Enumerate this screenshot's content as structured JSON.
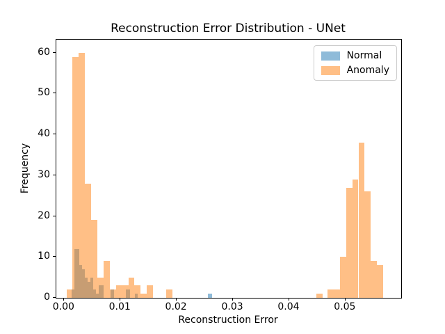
{
  "figure": {
    "title": "Reconstruction Error Distribution - UNet",
    "xlabel": "Reconstruction Error",
    "ylabel": "Frequency"
  },
  "chart_data": {
    "type": "bar",
    "subtype": "histogram-overlaid",
    "title": "Reconstruction Error Distribution - UNet",
    "xlabel": "Reconstruction Error",
    "ylabel": "Frequency",
    "xlim": [
      -0.0014,
      0.0599
    ],
    "ylim": [
      0,
      63.2
    ],
    "x_ticks": [
      0.0,
      0.01,
      0.02,
      0.03,
      0.04,
      0.05
    ],
    "x_tick_labels": [
      "0.00",
      "0.01",
      "0.02",
      "0.03",
      "0.04",
      "0.05"
    ],
    "y_ticks": [
      0,
      10,
      20,
      30,
      40,
      50,
      60
    ],
    "y_tick_labels": [
      "0",
      "10",
      "20",
      "30",
      "40",
      "50",
      "60"
    ],
    "grid": false,
    "legend_position": "upper-right",
    "series": [
      {
        "name": "Normal",
        "color": "#1f77b4",
        "alpha": 0.5,
        "bars": [
          {
            "x": 0.0013,
            "w": 0.0005,
            "c": 2
          },
          {
            "x": 0.0018,
            "w": 0.0009,
            "c": 12
          },
          {
            "x": 0.0027,
            "w": 0.0005,
            "c": 8
          },
          {
            "x": 0.0032,
            "w": 0.0005,
            "c": 7
          },
          {
            "x": 0.0037,
            "w": 0.0005,
            "c": 5
          },
          {
            "x": 0.0042,
            "w": 0.0005,
            "c": 4
          },
          {
            "x": 0.0047,
            "w": 0.0005,
            "c": 5
          },
          {
            "x": 0.0052,
            "w": 0.0005,
            "c": 2
          },
          {
            "x": 0.0057,
            "w": 0.0004,
            "c": 1
          },
          {
            "x": 0.0061,
            "w": 0.0009,
            "c": 3
          },
          {
            "x": 0.0083,
            "w": 0.0005,
            "c": 2
          },
          {
            "x": 0.011,
            "w": 0.0007,
            "c": 2
          },
          {
            "x": 0.0126,
            "w": 0.0005,
            "c": 1
          },
          {
            "x": 0.0256,
            "w": 0.0007,
            "c": 1
          }
        ]
      },
      {
        "name": "Anomaly",
        "color": "#ff7f0e",
        "alpha": 0.5,
        "bars": [
          {
            "x": 0.0004,
            "w": 0.0011,
            "c": 2
          },
          {
            "x": 0.0015,
            "w": 0.0011,
            "c": 59
          },
          {
            "x": 0.0026,
            "w": 0.0011,
            "c": 60
          },
          {
            "x": 0.0037,
            "w": 0.0011,
            "c": 28
          },
          {
            "x": 0.0048,
            "w": 0.0011,
            "c": 19
          },
          {
            "x": 0.0059,
            "w": 0.0011,
            "c": 5
          },
          {
            "x": 0.007,
            "w": 0.0011,
            "c": 9
          },
          {
            "x": 0.0081,
            "w": 0.0011,
            "c": 2
          },
          {
            "x": 0.0092,
            "w": 0.0011,
            "c": 3
          },
          {
            "x": 0.0103,
            "w": 0.0011,
            "c": 3
          },
          {
            "x": 0.0114,
            "w": 0.0011,
            "c": 5
          },
          {
            "x": 0.0125,
            "w": 0.0011,
            "c": 3
          },
          {
            "x": 0.0136,
            "w": 0.0011,
            "c": 1
          },
          {
            "x": 0.0147,
            "w": 0.0011,
            "c": 3
          },
          {
            "x": 0.0181,
            "w": 0.0011,
            "c": 2
          },
          {
            "x": 0.0448,
            "w": 0.0011,
            "c": 1
          },
          {
            "x": 0.0468,
            "w": 0.0011,
            "c": 2
          },
          {
            "x": 0.0479,
            "w": 0.0011,
            "c": 2
          },
          {
            "x": 0.049,
            "w": 0.0011,
            "c": 10
          },
          {
            "x": 0.0501,
            "w": 0.0011,
            "c": 27
          },
          {
            "x": 0.0512,
            "w": 0.0011,
            "c": 29
          },
          {
            "x": 0.0523,
            "w": 0.0011,
            "c": 38
          },
          {
            "x": 0.0534,
            "w": 0.0011,
            "c": 26
          },
          {
            "x": 0.0545,
            "w": 0.0011,
            "c": 9
          },
          {
            "x": 0.0556,
            "w": 0.0011,
            "c": 8
          }
        ]
      }
    ]
  }
}
